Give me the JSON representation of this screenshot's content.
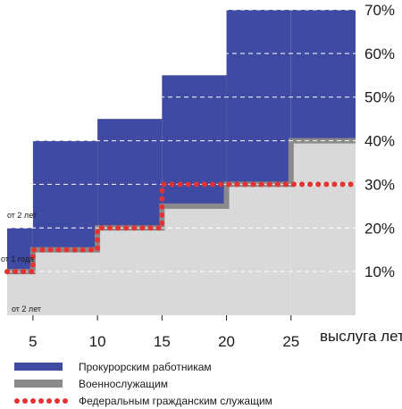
{
  "chart_data": {
    "type": "step-area",
    "x_unit_label": "выслуга лет",
    "x_ticks": [
      5,
      10,
      15,
      20,
      25
    ],
    "y_ticks": [
      "10%",
      "20%",
      "30%",
      "40%",
      "50%",
      "60%",
      "70%"
    ],
    "ylim": [
      0,
      70
    ],
    "xlim": [
      3,
      30
    ],
    "series": [
      {
        "name": "Прокурорским работникам",
        "color": "#3f4aa3",
        "steps": [
          {
            "from": 3,
            "to": 5,
            "value": 20
          },
          {
            "from": 5,
            "to": 10,
            "value": 40
          },
          {
            "from": 10,
            "to": 15,
            "value": 45
          },
          {
            "from": 15,
            "to": 20,
            "value": 55
          },
          {
            "from": 20,
            "to": 30,
            "value": 70
          }
        ],
        "floor": [
          {
            "from": 3,
            "to": 5,
            "value": 10
          },
          {
            "from": 5,
            "to": 10,
            "value": 15
          },
          {
            "from": 10,
            "to": 15,
            "value": 20
          },
          {
            "from": 15,
            "to": 20,
            "value": 25
          },
          {
            "from": 20,
            "to": 25,
            "value": 30
          },
          {
            "from": 25,
            "to": 30,
            "value": 40
          }
        ]
      },
      {
        "name": "Военнослужащим",
        "color": "#8a8a8a",
        "steps": [
          {
            "from": 3,
            "to": 5,
            "value": 10
          },
          {
            "from": 5,
            "to": 10,
            "value": 15
          },
          {
            "from": 10,
            "to": 15,
            "value": 20
          },
          {
            "from": 15,
            "to": 20,
            "value": 25
          },
          {
            "from": 20,
            "to": 25,
            "value": 30
          },
          {
            "from": 25,
            "to": 30,
            "value": 40
          }
        ]
      },
      {
        "name": "Федеральным гражданским служащим",
        "color": "#e53333",
        "steps": [
          {
            "from": 3,
            "to": 5,
            "value": 10
          },
          {
            "from": 5,
            "to": 10,
            "value": 15
          },
          {
            "from": 10,
            "to": 15,
            "value": 20
          },
          {
            "from": 15,
            "to": 30,
            "value": 30
          }
        ]
      }
    ],
    "annotations": [
      "от 2 лет",
      "от 1 года",
      "от 2 лет"
    ]
  },
  "legend": {
    "items": [
      {
        "label": "Прокурорским работникам",
        "color": "#3f4aa3"
      },
      {
        "label": "Военнослужащим",
        "color": "#8a8a8a"
      },
      {
        "label": "Федеральным гражданским служащим",
        "color": "#e53333"
      }
    ]
  }
}
